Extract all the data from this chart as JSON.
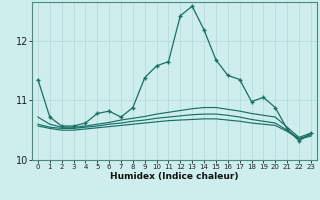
{
  "xlabel": "Humidex (Indice chaleur)",
  "background_color": "#cdeeed",
  "line_color": "#1a6e65",
  "grid_color": "#b8dedd",
  "xlim": [
    -0.5,
    23.5
  ],
  "ylim": [
    10.0,
    12.65
  ],
  "yticks": [
    10,
    11,
    12
  ],
  "xticks": [
    0,
    1,
    2,
    3,
    4,
    5,
    6,
    7,
    8,
    9,
    10,
    11,
    12,
    13,
    14,
    15,
    16,
    17,
    18,
    19,
    20,
    21,
    22,
    23
  ],
  "main_line": {
    "x": [
      0,
      1,
      2,
      3,
      4,
      5,
      6,
      7,
      8,
      9,
      10,
      11,
      12,
      13,
      14,
      15,
      16,
      17,
      18,
      19,
      20,
      21,
      22,
      23
    ],
    "y": [
      11.35,
      10.72,
      10.57,
      10.57,
      10.62,
      10.78,
      10.82,
      10.72,
      10.88,
      11.38,
      11.58,
      11.65,
      12.42,
      12.58,
      12.18,
      11.68,
      11.42,
      11.35,
      10.98,
      11.05,
      10.88,
      10.52,
      10.32,
      10.45
    ]
  },
  "flat_lines": [
    {
      "x": [
        0,
        1,
        2,
        3,
        4,
        5,
        6,
        7,
        8,
        9,
        10,
        11,
        12,
        13,
        14,
        15,
        16,
        17,
        18,
        19,
        20,
        21,
        22,
        23
      ],
      "y": [
        10.72,
        10.6,
        10.55,
        10.55,
        10.57,
        10.6,
        10.63,
        10.67,
        10.7,
        10.73,
        10.77,
        10.8,
        10.83,
        10.86,
        10.88,
        10.88,
        10.85,
        10.82,
        10.78,
        10.75,
        10.72,
        10.55,
        10.38,
        10.45
      ]
    },
    {
      "x": [
        0,
        1,
        2,
        3,
        4,
        5,
        6,
        7,
        8,
        9,
        10,
        11,
        12,
        13,
        14,
        15,
        16,
        17,
        18,
        19,
        20,
        21,
        22,
        23
      ],
      "y": [
        10.6,
        10.55,
        10.53,
        10.53,
        10.55,
        10.57,
        10.6,
        10.62,
        10.65,
        10.67,
        10.7,
        10.72,
        10.74,
        10.76,
        10.77,
        10.77,
        10.75,
        10.72,
        10.68,
        10.65,
        10.62,
        10.5,
        10.36,
        10.42
      ]
    },
    {
      "x": [
        0,
        1,
        2,
        3,
        4,
        5,
        6,
        7,
        8,
        9,
        10,
        11,
        12,
        13,
        14,
        15,
        16,
        17,
        18,
        19,
        20,
        21,
        22,
        23
      ],
      "y": [
        10.57,
        10.53,
        10.5,
        10.5,
        10.52,
        10.54,
        10.56,
        10.58,
        10.6,
        10.62,
        10.64,
        10.66,
        10.67,
        10.68,
        10.69,
        10.69,
        10.67,
        10.65,
        10.62,
        10.6,
        10.58,
        10.48,
        10.35,
        10.4
      ]
    }
  ]
}
